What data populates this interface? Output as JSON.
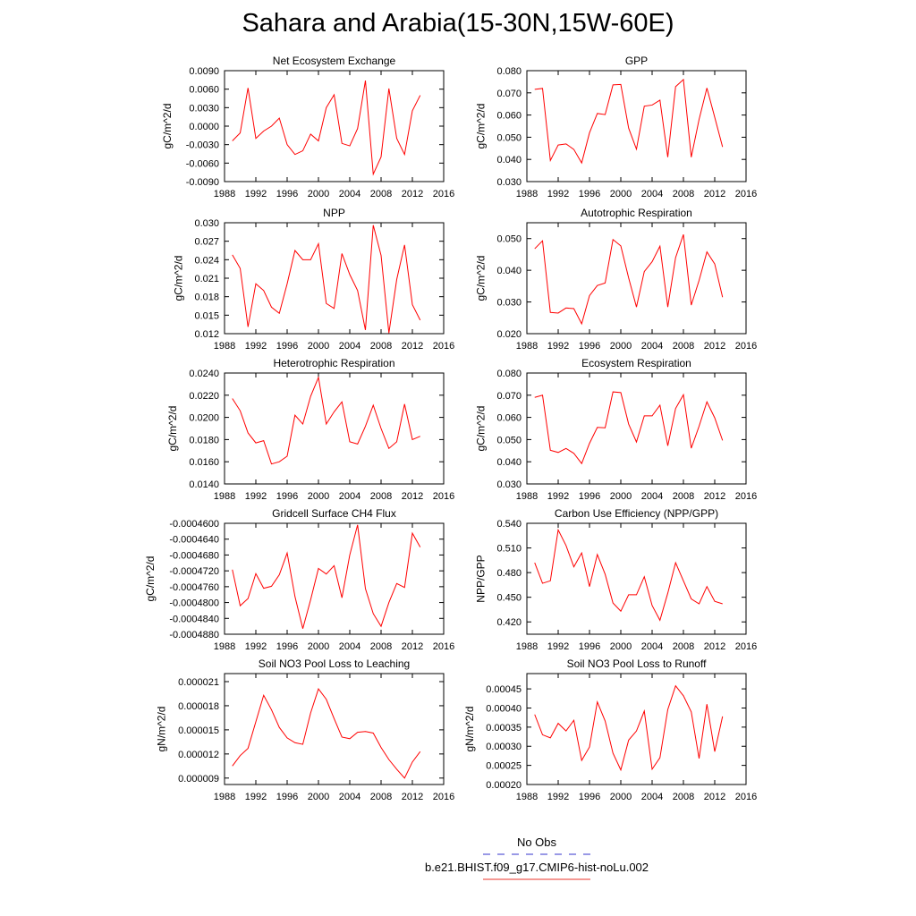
{
  "title": "Sahara and Arabia(15-30N,15W-60E)",
  "legend": {
    "entries": [
      {
        "label": "No Obs",
        "color": "#3333cc",
        "style": "dashed"
      },
      {
        "label": "b.e21.BHIST.f09_g17.CMIP6-hist-noLu.002",
        "color": "#e8332a",
        "style": "solid"
      }
    ]
  },
  "chart_data": [
    {
      "type": "line",
      "title": "Net Ecosystem Exchange",
      "ylabel": "gC/m^2/d",
      "xlim": [
        1988,
        2016
      ],
      "xticks": [
        "1988",
        "1992",
        "1996",
        "2000",
        "2004",
        "2008",
        "2012",
        "2016"
      ],
      "ylim": [
        -0.009,
        0.009
      ],
      "yticks": [
        "-0.0090",
        "-0.0060",
        "-0.0030",
        "0.0000",
        "0.0030",
        "0.0060",
        "0.0090"
      ],
      "series": [
        {
          "color": "#ff0000",
          "x": [
            1989,
            1990,
            1991,
            1992,
            1993,
            1994,
            1995,
            1996,
            1997,
            1998,
            1999,
            2000,
            2001,
            2002,
            2003,
            2004,
            2005,
            2006,
            2007,
            2008,
            2009,
            2010,
            2011,
            2012,
            2013
          ],
          "y": [
            -0.0024,
            -0.0011,
            0.0062,
            -0.002,
            -0.0008,
            0.0,
            0.0013,
            -0.003,
            -0.0046,
            -0.004,
            -0.0013,
            -0.0024,
            0.003,
            0.0051,
            -0.0028,
            -0.0032,
            -0.0004,
            0.0074,
            -0.0078,
            -0.005,
            0.0061,
            -0.002,
            -0.0046,
            0.0025,
            0.005
          ]
        }
      ]
    },
    {
      "type": "line",
      "title": "GPP",
      "ylabel": "gC/m^2/d",
      "xlim": [
        1988,
        2016
      ],
      "xticks": [
        "1988",
        "1992",
        "1996",
        "2000",
        "2004",
        "2008",
        "2012",
        "2016"
      ],
      "ylim": [
        0.03,
        0.08
      ],
      "yticks": [
        "0.030",
        "0.040",
        "0.050",
        "0.060",
        "0.070",
        "0.080"
      ],
      "series": [
        {
          "color": "#ff0000",
          "x": [
            1989,
            1990,
            1991,
            1992,
            1993,
            1994,
            1995,
            1996,
            1997,
            1998,
            1999,
            2000,
            2001,
            2002,
            2003,
            2004,
            2005,
            2006,
            2007,
            2008,
            2009,
            2010,
            2011,
            2012,
            2013
          ],
          "y": [
            0.0716,
            0.072,
            0.0395,
            0.0465,
            0.047,
            0.0445,
            0.0384,
            0.052,
            0.0607,
            0.0602,
            0.0736,
            0.0738,
            0.0541,
            0.0446,
            0.064,
            0.0645,
            0.0667,
            0.041,
            0.0728,
            0.076,
            0.041,
            0.058,
            0.0722,
            0.059,
            0.0456
          ]
        }
      ]
    },
    {
      "type": "line",
      "title": "NPP",
      "ylabel": "gC/m^2/d",
      "xlim": [
        1988,
        2016
      ],
      "xticks": [
        "1988",
        "1992",
        "1996",
        "2000",
        "2004",
        "2008",
        "2012",
        "2016"
      ],
      "ylim": [
        0.012,
        0.03
      ],
      "yticks": [
        "0.012",
        "0.015",
        "0.018",
        "0.021",
        "0.024",
        "0.027",
        "0.030"
      ],
      "series": [
        {
          "color": "#ff0000",
          "x": [
            1989,
            1990,
            1991,
            1992,
            1993,
            1994,
            1995,
            1996,
            1997,
            1998,
            1999,
            2000,
            2001,
            2002,
            2003,
            2004,
            2005,
            2006,
            2007,
            2008,
            2009,
            2010,
            2011,
            2012,
            2013
          ],
          "y": [
            0.0248,
            0.0226,
            0.0131,
            0.0201,
            0.019,
            0.0163,
            0.0153,
            0.0201,
            0.0255,
            0.024,
            0.024,
            0.0266,
            0.0169,
            0.0161,
            0.025,
            0.0216,
            0.019,
            0.0126,
            0.0296,
            0.0247,
            0.0121,
            0.0208,
            0.0264,
            0.0167,
            0.0142
          ]
        }
      ]
    },
    {
      "type": "line",
      "title": "Autotrophic Respiration",
      "ylabel": "gC/m^2/d",
      "xlim": [
        1988,
        2016
      ],
      "xticks": [
        "1988",
        "1992",
        "1996",
        "2000",
        "2004",
        "2008",
        "2012",
        "2016"
      ],
      "ylim": [
        0.02,
        0.055
      ],
      "yticks": [
        "0.020",
        "0.030",
        "0.040",
        "0.050"
      ],
      "series": [
        {
          "color": "#ff0000",
          "x": [
            1989,
            1990,
            1991,
            1992,
            1993,
            1994,
            1995,
            1996,
            1997,
            1998,
            1999,
            2000,
            2001,
            2002,
            2003,
            2004,
            2005,
            2006,
            2007,
            2008,
            2009,
            2010,
            2011,
            2012,
            2013
          ],
          "y": [
            0.0468,
            0.0493,
            0.0267,
            0.0265,
            0.0281,
            0.0279,
            0.0231,
            0.032,
            0.0352,
            0.036,
            0.0497,
            0.0477,
            0.0376,
            0.0284,
            0.0396,
            0.0427,
            0.0476,
            0.0284,
            0.044,
            0.0513,
            0.029,
            0.0368,
            0.0458,
            0.042,
            0.0315
          ]
        }
      ]
    },
    {
      "type": "line",
      "title": "Heterotrophic Respiration",
      "ylabel": "gC/m^2/d",
      "xlim": [
        1988,
        2016
      ],
      "xticks": [
        "1988",
        "1992",
        "1996",
        "2000",
        "2004",
        "2008",
        "2012",
        "2016"
      ],
      "ylim": [
        0.014,
        0.024
      ],
      "yticks": [
        "0.0140",
        "0.0160",
        "0.0180",
        "0.0200",
        "0.0220",
        "0.0240"
      ],
      "series": [
        {
          "color": "#ff0000",
          "x": [
            1989,
            1990,
            1991,
            1992,
            1993,
            1994,
            1995,
            1996,
            1997,
            1998,
            1999,
            2000,
            2001,
            2002,
            2003,
            2004,
            2005,
            2006,
            2007,
            2008,
            2009,
            2010,
            2011,
            2012,
            2013
          ],
          "y": [
            0.0217,
            0.0206,
            0.0186,
            0.0177,
            0.0179,
            0.0158,
            0.016,
            0.0165,
            0.0202,
            0.0194,
            0.0219,
            0.0236,
            0.0194,
            0.0205,
            0.0214,
            0.0178,
            0.0176,
            0.0192,
            0.0211,
            0.019,
            0.0172,
            0.0178,
            0.0212,
            0.018,
            0.0183
          ]
        }
      ]
    },
    {
      "type": "line",
      "title": "Ecosystem Respiration",
      "ylabel": "gC/m^2/d",
      "xlim": [
        1988,
        2016
      ],
      "xticks": [
        "1988",
        "1992",
        "1996",
        "2000",
        "2004",
        "2008",
        "2012",
        "2016"
      ],
      "ylim": [
        0.03,
        0.08
      ],
      "yticks": [
        "0.030",
        "0.040",
        "0.050",
        "0.060",
        "0.070",
        "0.080"
      ],
      "series": [
        {
          "color": "#ff0000",
          "x": [
            1989,
            1990,
            1991,
            1992,
            1993,
            1994,
            1995,
            1996,
            1997,
            1998,
            1999,
            2000,
            2001,
            2002,
            2003,
            2004,
            2005,
            2006,
            2007,
            2008,
            2009,
            2010,
            2011,
            2012,
            2013
          ],
          "y": [
            0.069,
            0.07,
            0.0452,
            0.0442,
            0.046,
            0.0438,
            0.0392,
            0.0483,
            0.0555,
            0.0553,
            0.0715,
            0.0712,
            0.057,
            0.0489,
            0.0607,
            0.0607,
            0.0655,
            0.0472,
            0.064,
            0.0702,
            0.0461,
            0.056,
            0.067,
            0.0598,
            0.0496
          ]
        }
      ]
    },
    {
      "type": "line",
      "title": "Gridcell Surface CH4 Flux",
      "ylabel": "gC/m^2/d",
      "xlim": [
        1988,
        2016
      ],
      "xticks": [
        "1988",
        "1992",
        "1996",
        "2000",
        "2004",
        "2008",
        "2012",
        "2016"
      ],
      "ylim": [
        -0.000488,
        -0.00046
      ],
      "yticks": [
        "-0.0004880",
        "-0.0004840",
        "-0.0004800",
        "-0.0004760",
        "-0.0004720",
        "-0.0004680",
        "-0.0004640",
        "-0.0004600"
      ],
      "series": [
        {
          "color": "#ff0000",
          "x": [
            1989,
            1990,
            1991,
            1992,
            1993,
            1994,
            1995,
            1996,
            1997,
            1998,
            1999,
            2000,
            2001,
            2002,
            2003,
            2004,
            2005,
            2006,
            2007,
            2008,
            2009,
            2010,
            2011,
            2012,
            2013
          ],
          "y": [
            -0.0004717,
            -0.0004808,
            -0.000479,
            -0.0004727,
            -0.0004764,
            -0.0004759,
            -0.000473,
            -0.0004675,
            -0.0004785,
            -0.0004866,
            -0.0004793,
            -0.0004714,
            -0.0004728,
            -0.0004707,
            -0.0004788,
            -0.000468,
            -0.0004604,
            -0.0004765,
            -0.0004828,
            -0.000486,
            -0.00048,
            -0.0004752,
            -0.0004762,
            -0.0004625,
            -0.000466
          ]
        }
      ]
    },
    {
      "type": "line",
      "title": "Carbon Use Efficiency (NPP/GPP)",
      "ylabel": "NPP/GPP",
      "xlim": [
        1988,
        2016
      ],
      "xticks": [
        "1988",
        "1992",
        "1996",
        "2000",
        "2004",
        "2008",
        "2012",
        "2016"
      ],
      "ylim": [
        0.405,
        0.54
      ],
      "yticks": [
        "0.420",
        "0.450",
        "0.480",
        "0.510",
        "0.540"
      ],
      "series": [
        {
          "color": "#ff0000",
          "x": [
            1989,
            1990,
            1991,
            1992,
            1993,
            1994,
            1995,
            1996,
            1997,
            1998,
            1999,
            2000,
            2001,
            2002,
            2003,
            2004,
            2005,
            2006,
            2007,
            2008,
            2009,
            2010,
            2011,
            2012,
            2013
          ],
          "y": [
            0.492,
            0.467,
            0.47,
            0.532,
            0.513,
            0.487,
            0.504,
            0.463,
            0.502,
            0.478,
            0.443,
            0.433,
            0.453,
            0.453,
            0.475,
            0.44,
            0.422,
            0.455,
            0.492,
            0.47,
            0.448,
            0.442,
            0.463,
            0.445,
            0.442
          ]
        }
      ]
    },
    {
      "type": "line",
      "title": "Soil NO3 Pool Loss to Leaching",
      "ylabel": "gN/m^2/d",
      "xlim": [
        1988,
        2016
      ],
      "xticks": [
        "1988",
        "1992",
        "1996",
        "2000",
        "2004",
        "2008",
        "2012",
        "2016"
      ],
      "ylim": [
        8.2e-06,
        2.2e-05
      ],
      "yticks": [
        "0.000009",
        "0.000012",
        "0.000015",
        "0.000018",
        "0.000021"
      ],
      "series": [
        {
          "color": "#ff0000",
          "x": [
            1989,
            1990,
            1991,
            1992,
            1993,
            1994,
            1995,
            1996,
            1997,
            1998,
            1999,
            2000,
            2001,
            2002,
            2003,
            2004,
            2005,
            2006,
            2007,
            2008,
            2009,
            2010,
            2011,
            2012,
            2013
          ],
          "y": [
            1.05e-05,
            1.18e-05,
            1.27e-05,
            1.6e-05,
            1.93e-05,
            1.75e-05,
            1.53e-05,
            1.4e-05,
            1.34e-05,
            1.32e-05,
            1.71e-05,
            2.01e-05,
            1.88e-05,
            1.64e-05,
            1.41e-05,
            1.39e-05,
            1.47e-05,
            1.48e-05,
            1.46e-05,
            1.28e-05,
            1.13e-05,
            1.01e-05,
            9e-06,
            1.1e-05,
            1.23e-05
          ]
        }
      ]
    },
    {
      "type": "line",
      "title": "Soil NO3 Pool Loss to Runoff",
      "ylabel": "gN/m^2/d",
      "xlim": [
        1988,
        2016
      ],
      "xticks": [
        "1988",
        "1992",
        "1996",
        "2000",
        "2004",
        "2008",
        "2012",
        "2016"
      ],
      "ylim": [
        0.0002,
        0.00049
      ],
      "yticks": [
        "0.00020",
        "0.00025",
        "0.00030",
        "0.00035",
        "0.00040",
        "0.00045"
      ],
      "series": [
        {
          "color": "#ff0000",
          "x": [
            1989,
            1990,
            1991,
            1992,
            1993,
            1994,
            1995,
            1996,
            1997,
            1998,
            1999,
            2000,
            2001,
            2002,
            2003,
            2004,
            2005,
            2006,
            2007,
            2008,
            2009,
            2010,
            2011,
            2012,
            2013
          ],
          "y": [
            0.000383,
            0.00033,
            0.000322,
            0.00036,
            0.00034,
            0.000368,
            0.000263,
            0.000298,
            0.000416,
            0.000366,
            0.000282,
            0.000238,
            0.000316,
            0.00034,
            0.000392,
            0.00024,
            0.00027,
            0.000396,
            0.000458,
            0.000432,
            0.00039,
            0.000268,
            0.00041,
            0.000286,
            0.000378
          ]
        }
      ]
    }
  ]
}
